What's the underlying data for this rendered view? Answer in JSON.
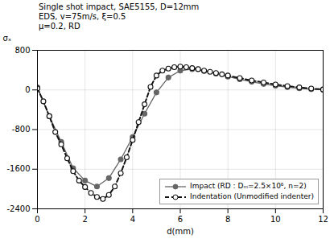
{
  "chart_data": {
    "type": "line",
    "xlabel": "d(mm)",
    "ylabel": "σₓ",
    "annotation": "Single shot impact, SAE5155, D=12mm\nEDS, v=75m/s, ξ=0.5\nμ=0.2, RD",
    "xlim": [
      0,
      12
    ],
    "ylim": [
      -2400,
      800
    ],
    "xticks": [
      0,
      2,
      4,
      6,
      8,
      10,
      12
    ],
    "yticks": [
      -2400,
      -1600,
      -800,
      0,
      800
    ],
    "grid": true,
    "legend": "lower right",
    "series": [
      {
        "name": "Impact (RD : Dₘ=2.5×10⁶, n=2)",
        "color": "#666666",
        "marker": "circle",
        "line_style": "solid",
        "x": [
          0.0,
          0.5,
          1.0,
          1.5,
          2.0,
          2.5,
          3.0,
          3.5,
          4.0,
          4.5,
          5.0,
          5.5,
          6.0,
          6.5,
          7.0,
          7.5,
          8.0,
          8.5,
          9.0,
          9.5,
          10.0,
          10.5,
          11.0,
          11.5,
          12.0
        ],
        "values": [
          50,
          -530,
          -1050,
          -1580,
          -1830,
          -1950,
          -1780,
          -1400,
          -950,
          -480,
          -50,
          250,
          390,
          420,
          380,
          330,
          270,
          215,
          165,
          120,
          85,
          55,
          32,
          15,
          5
        ]
      },
      {
        "name": "Indentation (Unmodified indenter)",
        "color": "#111111",
        "marker": "open_circle",
        "line_style": "dashed",
        "x": [
          0.0,
          0.25,
          0.5,
          0.75,
          1.0,
          1.25,
          1.5,
          1.75,
          2.0,
          2.25,
          2.5,
          2.75,
          3.0,
          3.25,
          3.5,
          3.75,
          4.0,
          4.25,
          4.5,
          4.75,
          5.0,
          5.25,
          5.5,
          5.75,
          6.0,
          6.25,
          6.5,
          6.75,
          7.0,
          7.25,
          7.5,
          7.75,
          8.0,
          8.5,
          9.0,
          9.5,
          10.0,
          10.5,
          11.0,
          11.5,
          12.0
        ],
        "values": [
          30,
          -230,
          -530,
          -850,
          -1100,
          -1380,
          -1640,
          -1830,
          -1960,
          -2080,
          -2160,
          -2200,
          -2120,
          -1950,
          -1680,
          -1360,
          -1010,
          -650,
          -290,
          60,
          290,
          390,
          430,
          460,
          470,
          460,
          440,
          420,
          390,
          365,
          340,
          315,
          290,
          240,
          190,
          150,
          110,
          78,
          50,
          28,
          10
        ]
      }
    ]
  }
}
